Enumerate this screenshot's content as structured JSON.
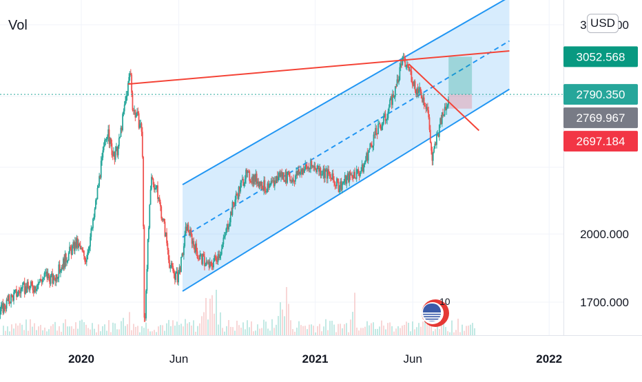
{
  "indicator_label": "Vol",
  "currency_button": "USD",
  "chart_data": {
    "type": "candlestick",
    "x_ticks": [
      {
        "label": "2020",
        "x": 2020.0,
        "bold": true
      },
      {
        "label": "Jun",
        "x": 2020.417,
        "bold": false
      },
      {
        "label": "2021",
        "x": 2021.0,
        "bold": true
      },
      {
        "label": "Jun",
        "x": 2021.417,
        "bold": false
      },
      {
        "label": "2022",
        "x": 2022.0,
        "bold": true
      }
    ],
    "y_ticks": [
      {
        "label": "2000.000",
        "value": 2000
      },
      {
        "label": "1700.000",
        "value": 1700
      }
    ],
    "y_top_label": "3600.000",
    "price_labels": [
      {
        "label": "3052.568",
        "value": 3052.568,
        "color": "#089981"
      },
      {
        "label": "2790.350",
        "value": 2790.35,
        "color": "#26a69a"
      },
      {
        "label": "2769.967",
        "value": 2769.967,
        "color": "#787b86"
      },
      {
        "label": "2697.184",
        "value": 2697.184,
        "color": "#f23645"
      }
    ],
    "current_price": 2790.35,
    "x_range": [
      2019.55,
      2022.05
    ],
    "log_scale": true,
    "price_path": [
      [
        2019.55,
        1575
      ],
      [
        2019.6,
        1610
      ],
      [
        2019.65,
        1660
      ],
      [
        2019.7,
        1720
      ],
      [
        2019.75,
        1755
      ],
      [
        2019.8,
        1765
      ],
      [
        2019.85,
        1815
      ],
      [
        2019.88,
        1790
      ],
      [
        2019.95,
        1915
      ],
      [
        2019.98,
        1955
      ],
      [
        2020.02,
        1885
      ],
      [
        2020.05,
        2050
      ],
      [
        2020.08,
        2310
      ],
      [
        2020.11,
        2560
      ],
      [
        2020.14,
        2390
      ],
      [
        2020.16,
        2470
      ],
      [
        2020.18,
        2660
      ],
      [
        2020.2,
        2850
      ],
      [
        2020.21,
        2960
      ],
      [
        2020.22,
        2700
      ],
      [
        2020.24,
        2640
      ],
      [
        2020.26,
        2560
      ],
      [
        2020.27,
        1560
      ],
      [
        2020.28,
        1850
      ],
      [
        2020.3,
        2280
      ],
      [
        2020.32,
        2230
      ],
      [
        2020.34,
        2120
      ],
      [
        2020.36,
        2000
      ],
      [
        2020.38,
        1850
      ],
      [
        2020.41,
        1800
      ],
      [
        2020.43,
        1880
      ],
      [
        2020.45,
        2040
      ],
      [
        2020.5,
        1900
      ],
      [
        2020.55,
        1850
      ],
      [
        2020.6,
        1930
      ],
      [
        2020.65,
        2150
      ],
      [
        2020.7,
        2300
      ],
      [
        2020.75,
        2280
      ],
      [
        2020.8,
        2220
      ],
      [
        2020.85,
        2310
      ],
      [
        2020.9,
        2280
      ],
      [
        2020.95,
        2340
      ],
      [
        2021.0,
        2350
      ],
      [
        2021.05,
        2310
      ],
      [
        2021.1,
        2240
      ],
      [
        2021.15,
        2300
      ],
      [
        2021.2,
        2330
      ],
      [
        2021.25,
        2520
      ],
      [
        2021.3,
        2640
      ],
      [
        2021.35,
        2850
      ],
      [
        2021.37,
        3030
      ],
      [
        2021.4,
        2970
      ],
      [
        2021.43,
        2830
      ],
      [
        2021.46,
        2770
      ],
      [
        2021.48,
        2700
      ],
      [
        2021.5,
        2380
      ],
      [
        2021.52,
        2520
      ],
      [
        2021.55,
        2680
      ],
      [
        2021.57,
        2780
      ]
    ],
    "channel": {
      "lower": [
        [
          2020.433,
          1745
        ],
        [
          2021.83,
          2825
        ]
      ],
      "upper": [
        [
          2020.433,
          2250
        ],
        [
          2021.83,
          3520
        ]
      ],
      "mid": [
        [
          2020.433,
          1985
        ],
        [
          2021.83,
          3170
        ]
      ]
    },
    "red_trendline": [
      [
        2020.2,
        2860
      ],
      [
        2021.83,
        3095
      ]
    ],
    "red_down_line": [
      [
        2021.4,
        3000
      ],
      [
        2021.7,
        2560
      ]
    ],
    "projection": {
      "x0": 2021.57,
      "x1": 2021.67,
      "entry": 2790.35,
      "target": 3052.568,
      "stop": 2697.184
    },
    "volume_note": "volume histogram shown"
  }
}
